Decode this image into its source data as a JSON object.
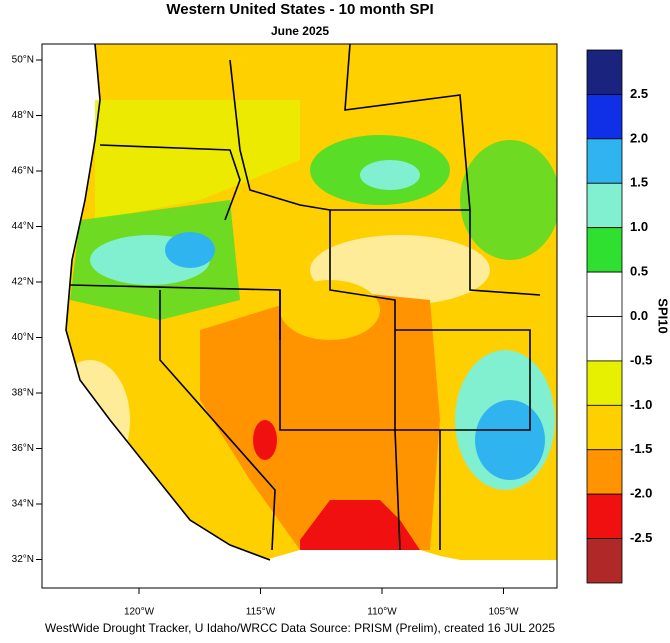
{
  "header": {
    "title": "Western United States - 10 month SPI",
    "subtitle": "June 2025"
  },
  "map": {
    "lat_labels": [
      "50°N",
      "48°N",
      "46°N",
      "44°N",
      "42°N",
      "40°N",
      "38°N",
      "36°N",
      "34°N",
      "32°N"
    ],
    "lon_labels": [
      "120°W",
      "115°W",
      "110°W",
      "105°W"
    ]
  },
  "colorbar": {
    "title": "SPI10",
    "labels": [
      "2.5",
      "2.0",
      "1.5",
      "1.0",
      "0.5",
      "0.0",
      "-0.5",
      "-1.0",
      "-1.5",
      "-2.0",
      "-2.5"
    ],
    "colors": [
      "#1a237e",
      "#1030e8",
      "#30b4f0",
      "#80f0d0",
      "#30e030",
      "#ffffff",
      "#ffffff",
      "#e6f000",
      "#ffd000",
      "#ff9400",
      "#f01010",
      "#b02828"
    ]
  },
  "footer": "WestWide Drought Tracker, U Idaho/WRCC Data Source: PRISM (Prelim), created 16 JUL 2025"
}
